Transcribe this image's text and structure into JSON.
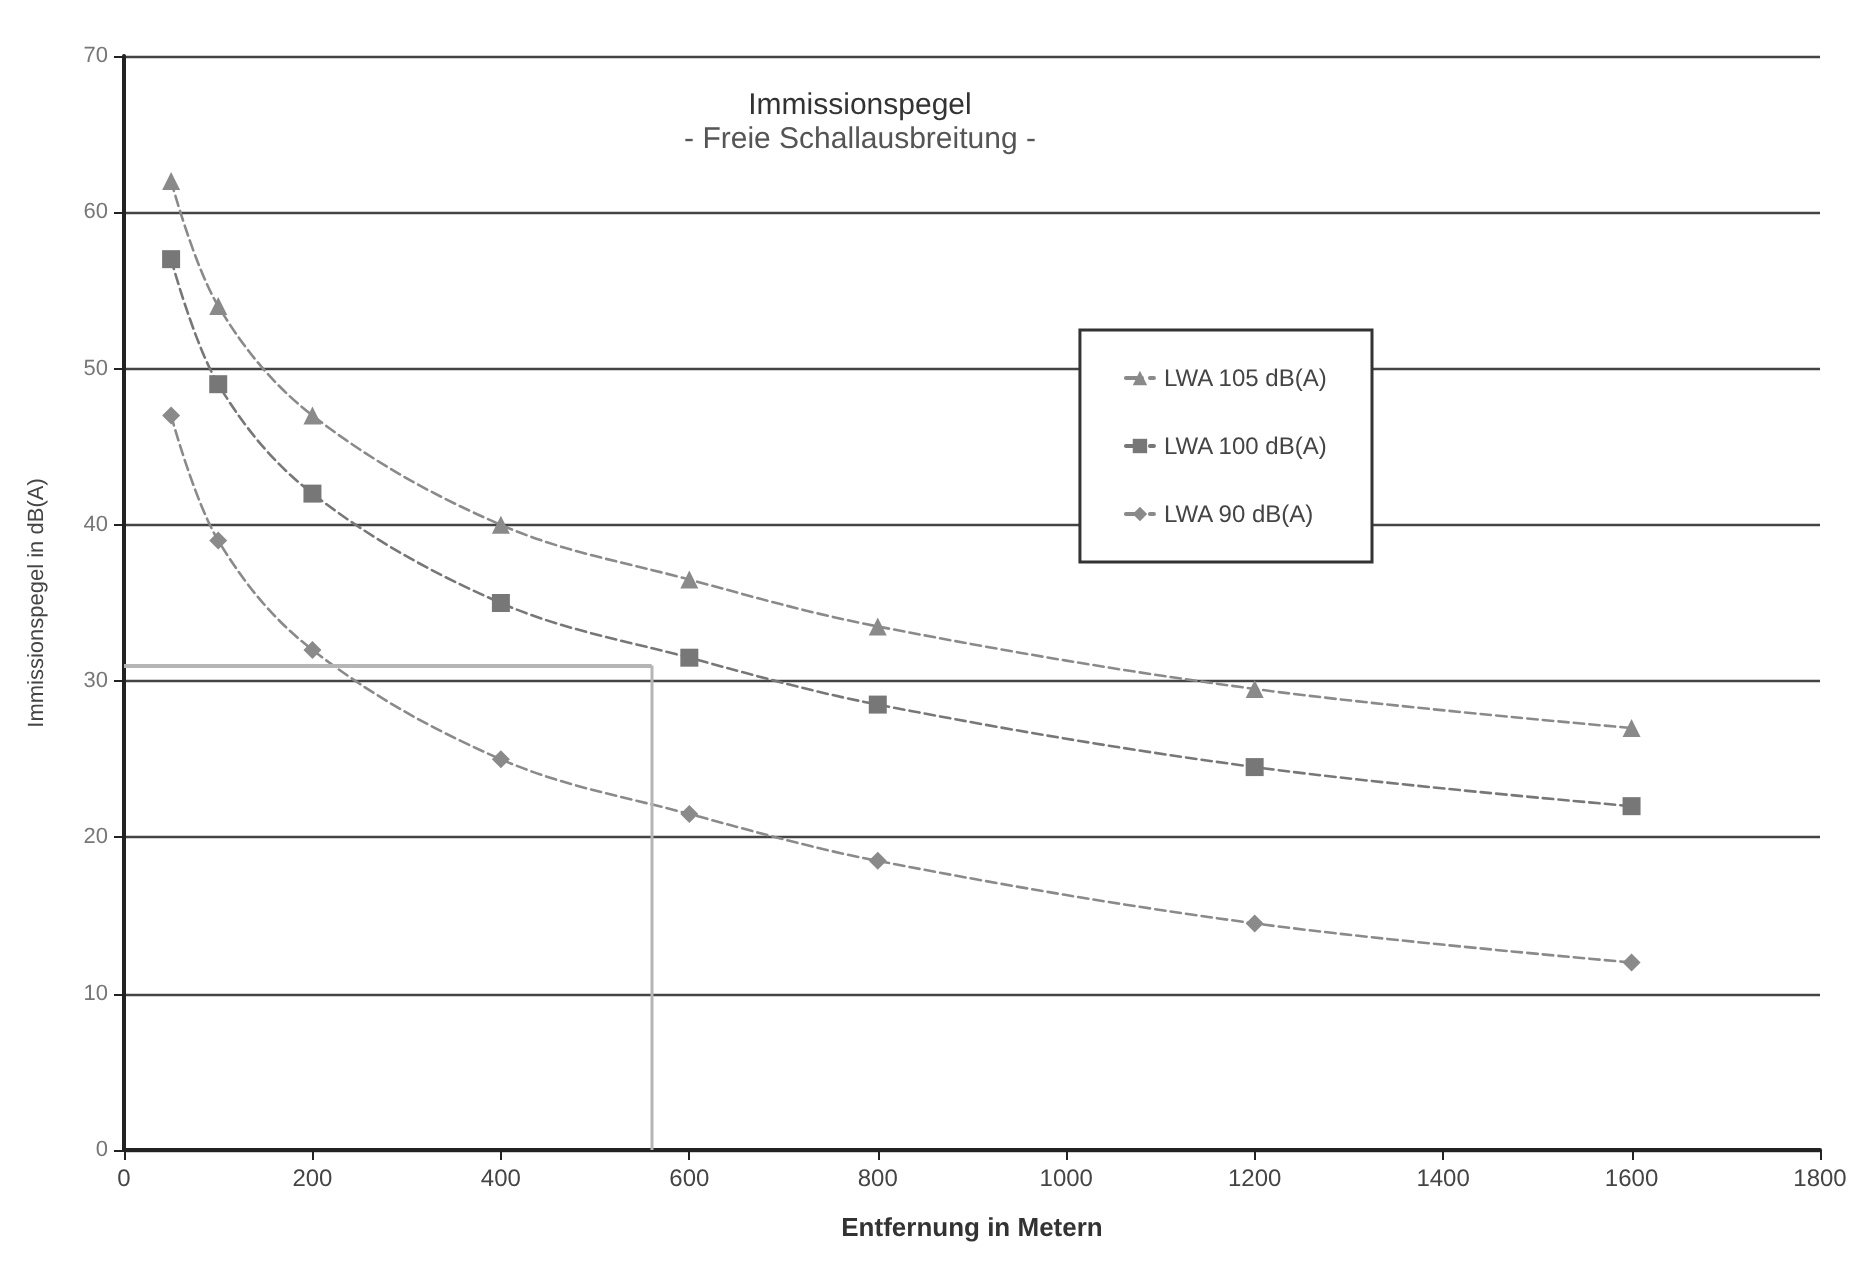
{
  "chart_data": {
    "type": "line",
    "title": "Immissionspegel",
    "subtitle": "- Freie Schallausbreitung -",
    "xlabel": "Entfernung in Metern",
    "ylabel": "Immissionspegel in dB(A)",
    "x": [
      50,
      100,
      200,
      400,
      600,
      800,
      1200,
      1600
    ],
    "series": [
      {
        "name": "LWA 105 dB(A)",
        "color": "#8a8a8a",
        "marker": "triangle",
        "line_style": "dashed",
        "values": [
          62,
          54,
          47,
          40,
          36.5,
          33.5,
          29.5,
          27
        ]
      },
      {
        "name": "LWA 100 dB(A)",
        "color": "#777777",
        "marker": "square",
        "line_style": "dashed",
        "values": [
          57,
          49,
          42,
          35,
          31.5,
          28.5,
          24.5,
          22
        ]
      },
      {
        "name": "LWA 90 dB(A)",
        "color": "#8a8a8a",
        "marker": "diamond",
        "line_style": "dashed",
        "values": [
          47,
          39,
          32,
          25,
          21.5,
          18.5,
          14.5,
          12
        ]
      }
    ],
    "ref_lines": [
      {
        "axis": "y",
        "value": 31,
        "color": "#b5b5b5"
      },
      {
        "axis": "x",
        "value": 560,
        "color": "#b5b5b5"
      }
    ],
    "xlim": [
      0,
      1800
    ],
    "xticks": [
      0,
      200,
      400,
      600,
      800,
      1000,
      1200,
      1400,
      1600,
      1800
    ],
    "ylim": [
      0,
      70
    ],
    "yticks": [
      0,
      10,
      20,
      30,
      40,
      50,
      60,
      70
    ],
    "grid": "y",
    "legend": "top right"
  }
}
